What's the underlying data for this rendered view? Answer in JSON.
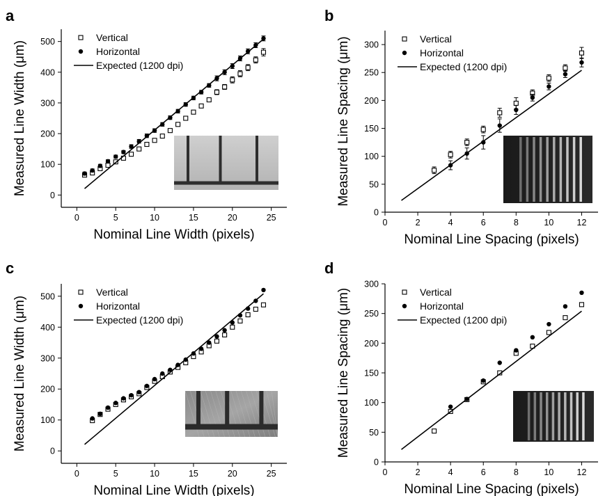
{
  "chart_data": [
    {
      "panel": "a",
      "type": "scatter",
      "xlabel": "Nominal Line Width (pixels)",
      "ylabel": "Measured Line Width (μm)",
      "xlim": [
        -2,
        27
      ],
      "ylim": [
        -40,
        540
      ],
      "xticks": [
        0,
        5,
        10,
        15,
        20,
        25
      ],
      "yticks": [
        0,
        100,
        200,
        300,
        400,
        500
      ],
      "legend": {
        "position": "top-left",
        "entries": [
          "Vertical",
          "Horizontal",
          "Expected (1200 dpi)"
        ]
      },
      "inset": {
        "description": "micrograph",
        "tone": "light",
        "corner": "bottom-right"
      },
      "series": [
        {
          "name": "Vertical",
          "marker": "open-square",
          "x": [
            1,
            2,
            3,
            4,
            5,
            6,
            7,
            8,
            9,
            10,
            11,
            12,
            13,
            14,
            15,
            16,
            17,
            18,
            19,
            20,
            21,
            22,
            23,
            24
          ],
          "y": [
            65,
            72,
            86,
            97,
            108,
            120,
            133,
            150,
            165,
            178,
            192,
            210,
            230,
            250,
            270,
            290,
            310,
            335,
            352,
            375,
            395,
            415,
            440,
            465
          ],
          "err": [
            6,
            6,
            6,
            6,
            6,
            6,
            6,
            6,
            6,
            6,
            6,
            6,
            6,
            6,
            6,
            6,
            6,
            8,
            8,
            10,
            10,
            10,
            10,
            12
          ]
        },
        {
          "name": "Horizontal",
          "marker": "filled-circle",
          "x": [
            1,
            2,
            3,
            4,
            5,
            6,
            7,
            8,
            9,
            10,
            11,
            12,
            13,
            14,
            15,
            16,
            17,
            18,
            19,
            20,
            21,
            22,
            23,
            24
          ],
          "y": [
            70,
            80,
            95,
            110,
            125,
            140,
            158,
            175,
            193,
            210,
            230,
            252,
            273,
            295,
            316,
            335,
            357,
            380,
            400,
            420,
            445,
            468,
            488,
            510
          ],
          "err": [
            5,
            5,
            5,
            5,
            5,
            5,
            6,
            6,
            6,
            6,
            6,
            6,
            6,
            6,
            6,
            6,
            6,
            8,
            8,
            8,
            8,
            8,
            8,
            8
          ]
        },
        {
          "name": "Expected (1200 dpi)",
          "line": true,
          "x": [
            1,
            24
          ],
          "y": [
            21,
            508
          ]
        }
      ]
    },
    {
      "panel": "b",
      "type": "scatter",
      "xlabel": "Nominal Line Spacing (pixels)",
      "ylabel": "Measured Line Spacing (μm)",
      "xlim": [
        0,
        13
      ],
      "ylim": [
        0,
        325
      ],
      "xticks": [
        0,
        2,
        4,
        6,
        8,
        10,
        12
      ],
      "yticks": [
        0,
        50,
        100,
        150,
        200,
        250,
        300
      ],
      "legend": {
        "position": "top-left",
        "entries": [
          "Vertical",
          "Horizontal",
          "Expected (1200 dpi)"
        ]
      },
      "inset": {
        "description": "micrograph",
        "tone": "dark-stripes",
        "corner": "bottom-right"
      },
      "series": [
        {
          "name": "Vertical",
          "marker": "open-square",
          "x": [
            3,
            4,
            5,
            6,
            7,
            8,
            9,
            10,
            11,
            12
          ],
          "y": [
            75,
            103,
            125,
            148,
            178,
            195,
            213,
            240,
            258,
            285
          ],
          "err": [
            6,
            6,
            6,
            6,
            8,
            10,
            6,
            6,
            6,
            10
          ]
        },
        {
          "name": "Horizontal",
          "marker": "filled-circle",
          "x": [
            4,
            5,
            6,
            7,
            8,
            9,
            10,
            11,
            12
          ],
          "y": [
            84,
            105,
            125,
            155,
            183,
            205,
            225,
            247,
            268
          ],
          "err": [
            8,
            10,
            12,
            12,
            8,
            6,
            6,
            6,
            8
          ]
        },
        {
          "name": "Expected (1200 dpi)",
          "line": true,
          "x": [
            1,
            12
          ],
          "y": [
            21,
            254
          ]
        }
      ]
    },
    {
      "panel": "c",
      "type": "scatter",
      "xlabel": "Nominal Line Width (pixels)",
      "ylabel": "Measured Line Width (μm)",
      "xlim": [
        -2,
        27
      ],
      "ylim": [
        -40,
        540
      ],
      "xticks": [
        0,
        5,
        10,
        15,
        20,
        25
      ],
      "yticks": [
        0,
        100,
        200,
        300,
        400,
        500
      ],
      "legend": {
        "position": "top-left",
        "entries": [
          "Vertical",
          "Horizontal",
          "Expected (1200 dpi)"
        ]
      },
      "inset": {
        "description": "micrograph",
        "tone": "grey",
        "corner": "bottom-right"
      },
      "series": [
        {
          "name": "Vertical",
          "marker": "open-square",
          "x": [
            2,
            3,
            4,
            5,
            6,
            7,
            8,
            9,
            10,
            11,
            12,
            13,
            14,
            15,
            16,
            17,
            18,
            19,
            20,
            21,
            22,
            23,
            24
          ],
          "y": [
            98,
            118,
            135,
            150,
            165,
            175,
            185,
            205,
            225,
            240,
            255,
            270,
            285,
            305,
            320,
            340,
            355,
            375,
            400,
            420,
            440,
            458,
            472
          ]
        },
        {
          "name": "Horizontal",
          "marker": "filled-circle",
          "x": [
            2,
            3,
            4,
            5,
            6,
            7,
            8,
            9,
            10,
            11,
            12,
            13,
            14,
            15,
            16,
            17,
            18,
            19,
            20,
            21,
            22,
            23,
            24
          ],
          "y": [
            105,
            120,
            140,
            155,
            170,
            180,
            190,
            210,
            232,
            250,
            262,
            278,
            295,
            315,
            330,
            350,
            370,
            390,
            415,
            438,
            460,
            485,
            520
          ]
        },
        {
          "name": "Expected (1200 dpi)",
          "line": true,
          "x": [
            1,
            24
          ],
          "y": [
            21,
            508
          ]
        }
      ]
    },
    {
      "panel": "d",
      "type": "scatter",
      "xlabel": "Nominal Line Spacing (pixels)",
      "ylabel": "Measured Line Spacing (μm)",
      "xlim": [
        0,
        13
      ],
      "ylim": [
        0,
        300
      ],
      "xticks": [
        0,
        2,
        4,
        6,
        8,
        10,
        12
      ],
      "yticks": [
        0,
        50,
        100,
        150,
        200,
        250,
        300
      ],
      "legend": {
        "position": "top-left",
        "entries": [
          "Vertical",
          "Horizontal",
          "Expected (1200 dpi)"
        ]
      },
      "inset": {
        "description": "micrograph",
        "tone": "dark-stripes",
        "corner": "bottom-right"
      },
      "series": [
        {
          "name": "Vertical",
          "marker": "open-square",
          "x": [
            3,
            4,
            5,
            6,
            7,
            8,
            9,
            10,
            11,
            12
          ],
          "y": [
            52,
            85,
            105,
            135,
            150,
            183,
            195,
            218,
            243,
            265
          ]
        },
        {
          "name": "Horizontal",
          "marker": "filled-circle",
          "x": [
            4,
            5,
            6,
            7,
            8,
            9,
            10,
            11,
            12
          ],
          "y": [
            93,
            106,
            137,
            167,
            188,
            210,
            232,
            262,
            285
          ]
        },
        {
          "name": "Expected (1200 dpi)",
          "line": true,
          "x": [
            1,
            12
          ],
          "y": [
            21,
            254
          ]
        }
      ]
    }
  ]
}
